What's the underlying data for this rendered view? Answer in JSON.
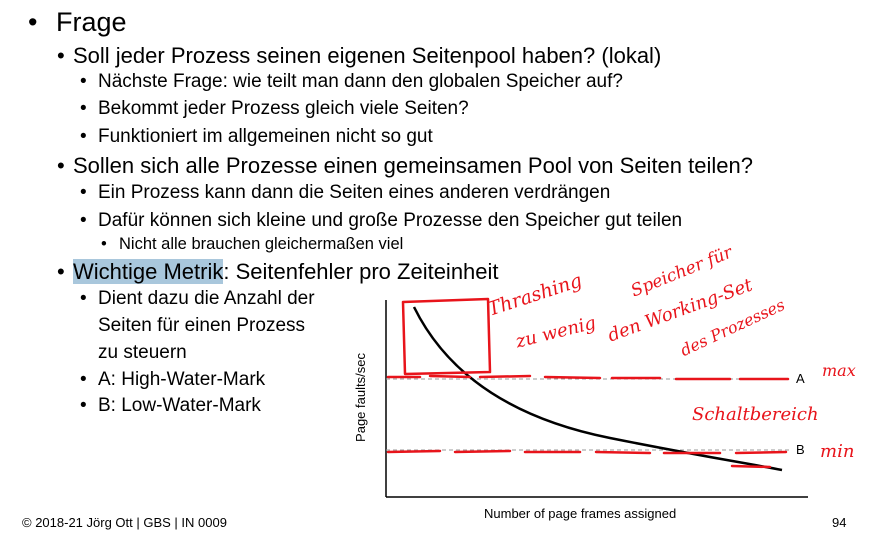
{
  "slide": {
    "bullets": [
      {
        "text": "Frage"
      },
      {
        "text": "Soll jeder Prozess seinen eigenen Seitenpool haben? (lokal)"
      },
      {
        "text": "Nächste Frage: wie teilt man dann den globalen Speicher auf?"
      },
      {
        "text": "Bekommt jeder Prozess gleich viele Seiten?"
      },
      {
        "text": "Funktioniert im allgemeinen nicht so gut"
      },
      {
        "text": "Sollen sich alle Prozesse einen gemeinsamen Pool von Seiten teilen?"
      },
      {
        "text": "Ein Prozess kann dann die Seiten eines anderen verdrängen"
      },
      {
        "text": "Dafür können sich kleine und große Prozesse den Speicher gut teilen"
      },
      {
        "text": "Nicht alle brauchen gleichermaßen viel"
      },
      {
        "text_highlight": "Wichtige Metrik",
        "text_rest": ": Seitenfehler pro Zeiteinheit"
      },
      {
        "lines": [
          "Dient dazu die Anzahl der",
          "Seiten für einen Prozess",
          "zu steuern"
        ]
      },
      {
        "text": "A: High-Water-Mark"
      },
      {
        "text": "B: Low-Water-Mark"
      }
    ],
    "highlight_color": "#a9c7dc",
    "ink_color": "#e8141b"
  },
  "chart_data": {
    "type": "line",
    "xlabel": "Number of page frames assigned",
    "ylabel": "Page faults/sec",
    "reference_lines": [
      {
        "label": "A"
      },
      {
        "label": "B"
      }
    ],
    "curve": "decreasing convex curve, page-fault rate falls as more page frames are assigned; crosses A early and approaches B near the right end"
  },
  "annotations": {
    "handwritten": [
      "Thrashing",
      "Speicher für",
      "zu wenig",
      "den Working-Set",
      "des Prozesses",
      "max",
      "Schaltbereich",
      "min"
    ]
  },
  "footer": {
    "copyright": "© 2018-21 Jörg Ott | GBS | IN 0009",
    "page_number": "94"
  }
}
